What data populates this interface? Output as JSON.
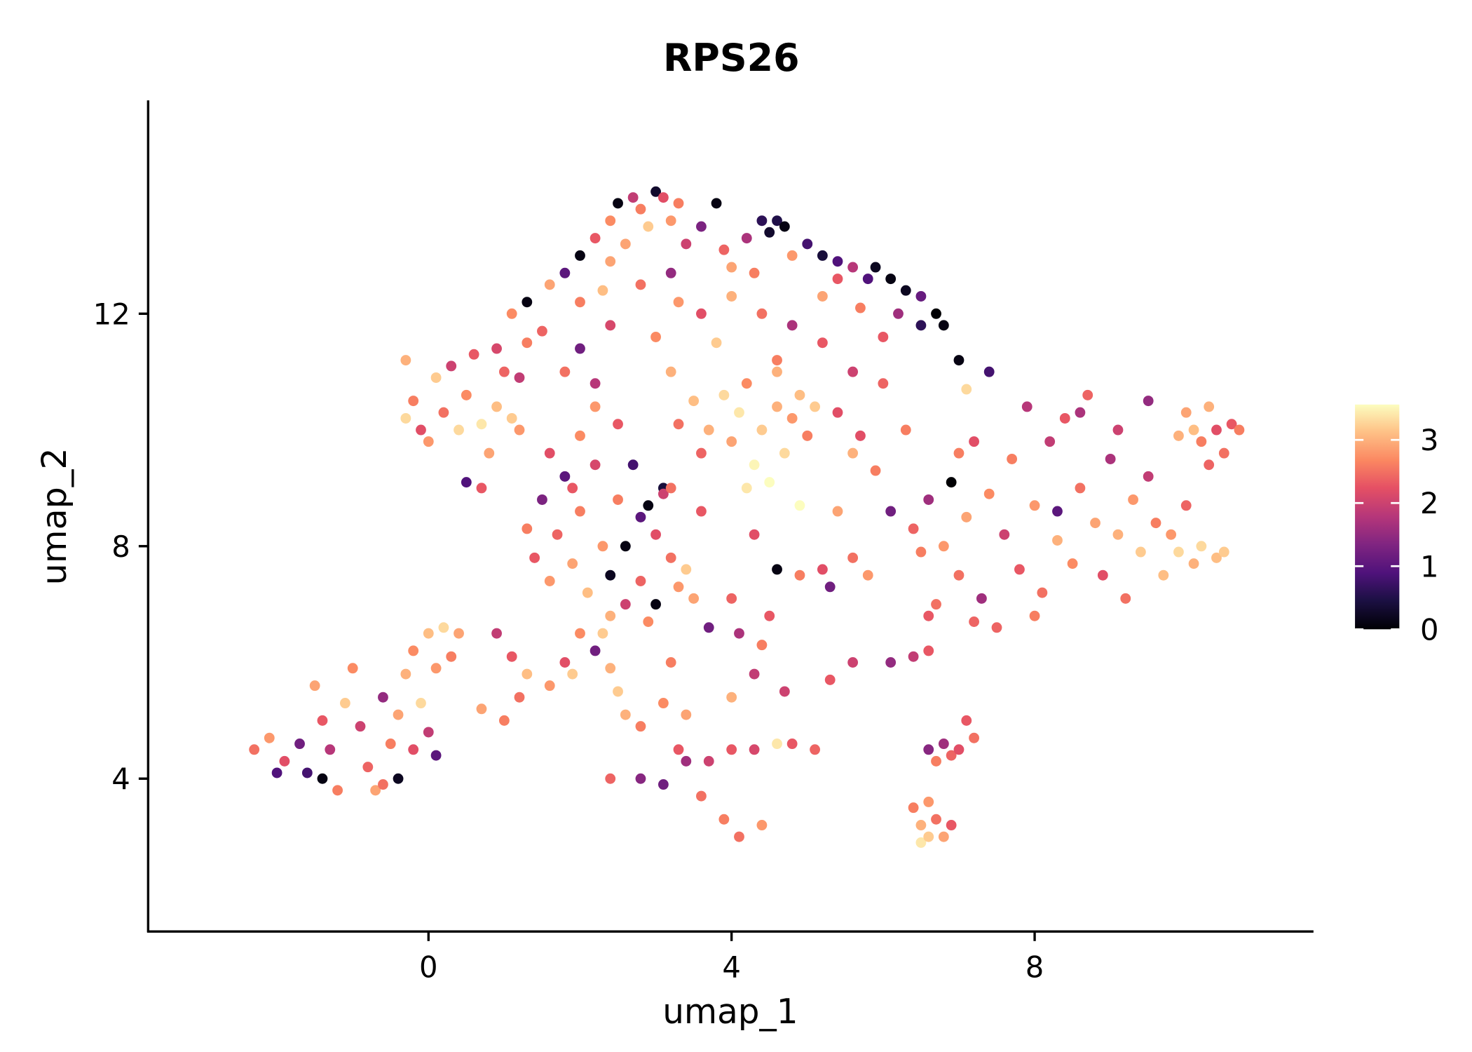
{
  "chart_data": {
    "type": "scatter",
    "title": "RPS26",
    "xlabel": "umap_1",
    "ylabel": "umap_2",
    "xlim": [
      -3.7,
      11.68
    ],
    "ylim": [
      1.37,
      15.67
    ],
    "xticks": [
      0,
      4,
      8
    ],
    "yticks": [
      4,
      8,
      12
    ],
    "xtick_labels": [
      "0",
      "4",
      "8"
    ],
    "ytick_labels": [
      "4",
      "8",
      "12"
    ],
    "grid": false,
    "colorbar": {
      "colormap": "magma",
      "range": [
        0,
        3.56
      ],
      "ticks": [
        0,
        1,
        2,
        3
      ],
      "tick_labels": [
        "0",
        "1",
        "2",
        "3"
      ],
      "placement": "right"
    },
    "point_fields": [
      "umap_1",
      "umap_2",
      "expression"
    ],
    "points": [
      [
        -2.3,
        4.5,
        2.5
      ],
      [
        -2.1,
        4.7,
        2.8
      ],
      [
        -1.9,
        4.3,
        2.2
      ],
      [
        -1.7,
        4.6,
        1.2
      ],
      [
        -1.6,
        4.1,
        0.8
      ],
      [
        -1.5,
        5.6,
        2.9
      ],
      [
        -1.4,
        5.0,
        2.3
      ],
      [
        -1.3,
        4.5,
        1.8
      ],
      [
        -1.2,
        3.8,
        2.6
      ],
      [
        -1.1,
        5.3,
        3.2
      ],
      [
        -1.0,
        5.9,
        2.7
      ],
      [
        -0.9,
        4.9,
        2.0
      ],
      [
        -0.8,
        4.2,
        2.4
      ],
      [
        -0.7,
        3.8,
        2.9
      ],
      [
        -0.6,
        5.4,
        1.5
      ],
      [
        -0.5,
        4.6,
        2.6
      ],
      [
        -0.4,
        5.1,
        2.9
      ],
      [
        -0.4,
        4.0,
        0.2
      ],
      [
        -0.3,
        5.8,
        3.0
      ],
      [
        -0.2,
        6.2,
        2.7
      ],
      [
        -0.2,
        4.5,
        2.2
      ],
      [
        -0.1,
        5.3,
        3.3
      ],
      [
        0.0,
        4.8,
        1.9
      ],
      [
        0.0,
        6.5,
        3.1
      ],
      [
        0.1,
        5.9,
        2.8
      ],
      [
        0.2,
        6.6,
        3.3
      ],
      [
        0.3,
        6.1,
        2.6
      ],
      [
        0.1,
        4.4,
        1.0
      ],
      [
        -1.4,
        4.0,
        0.1
      ],
      [
        -0.6,
        3.9,
        2.5
      ],
      [
        0.4,
        6.5,
        2.9
      ],
      [
        -2.0,
        4.1,
        0.9
      ],
      [
        -0.3,
        11.2,
        3.0
      ],
      [
        -0.2,
        10.5,
        2.6
      ],
      [
        -0.1,
        10.0,
        2.2
      ],
      [
        0.0,
        9.8,
        2.8
      ],
      [
        0.1,
        10.9,
        3.2
      ],
      [
        0.2,
        10.3,
        2.5
      ],
      [
        0.3,
        11.1,
        2.0
      ],
      [
        0.4,
        10.0,
        3.3
      ],
      [
        0.5,
        10.6,
        2.7
      ],
      [
        0.6,
        11.3,
        2.3
      ],
      [
        0.7,
        10.1,
        3.4
      ],
      [
        0.8,
        9.6,
        2.9
      ],
      [
        0.9,
        10.4,
        3.1
      ],
      [
        1.0,
        11.0,
        2.4
      ],
      [
        1.1,
        10.2,
        3.2
      ],
      [
        1.2,
        10.9,
        1.9
      ],
      [
        0.5,
        9.1,
        0.9
      ],
      [
        0.7,
        9.0,
        2.3
      ],
      [
        1.3,
        11.5,
        2.6
      ],
      [
        -0.3,
        10.2,
        3.3
      ],
      [
        0.9,
        11.4,
        2.1
      ],
      [
        1.2,
        10.0,
        2.8
      ],
      [
        1.1,
        12.0,
        2.7
      ],
      [
        1.3,
        12.2,
        0.1
      ],
      [
        1.5,
        11.7,
        2.4
      ],
      [
        1.6,
        12.5,
        2.9
      ],
      [
        1.8,
        12.7,
        1.0
      ],
      [
        2.0,
        12.2,
        2.6
      ],
      [
        2.0,
        13.0,
        0.1
      ],
      [
        2.2,
        13.3,
        2.3
      ],
      [
        2.3,
        12.4,
        3.1
      ],
      [
        2.4,
        13.6,
        2.7
      ],
      [
        2.5,
        13.9,
        0.1
      ],
      [
        2.6,
        13.2,
        2.9
      ],
      [
        2.7,
        14.0,
        1.9
      ],
      [
        2.8,
        13.8,
        2.6
      ],
      [
        2.9,
        13.5,
        3.2
      ],
      [
        3.0,
        14.1,
        0.3
      ],
      [
        3.1,
        14.0,
        2.2
      ],
      [
        3.2,
        13.6,
        2.8
      ],
      [
        3.3,
        13.9,
        2.6
      ],
      [
        3.4,
        13.2,
        2.0
      ],
      [
        3.6,
        13.5,
        1.3
      ],
      [
        3.8,
        13.9,
        0.1
      ],
      [
        3.9,
        13.1,
        2.4
      ],
      [
        4.0,
        12.8,
        2.9
      ],
      [
        4.2,
        13.3,
        1.7
      ],
      [
        4.4,
        13.6,
        0.6
      ],
      [
        4.5,
        13.4,
        0.3
      ],
      [
        4.6,
        13.6,
        0.5
      ],
      [
        4.7,
        13.5,
        0.1
      ],
      [
        4.8,
        13.0,
        2.8
      ],
      [
        5.0,
        13.2,
        0.8
      ],
      [
        5.2,
        13.0,
        0.4
      ],
      [
        5.4,
        12.6,
        2.3
      ],
      [
        5.6,
        12.8,
        1.8
      ],
      [
        5.8,
        12.6,
        0.9
      ],
      [
        5.9,
        12.8,
        0.2
      ],
      [
        6.1,
        12.6,
        0.1
      ],
      [
        6.3,
        12.4,
        0.2
      ],
      [
        6.5,
        12.3,
        1.1
      ],
      [
        6.7,
        12.0,
        0.0
      ],
      [
        6.8,
        11.8,
        0.1
      ],
      [
        6.5,
        11.8,
        0.6
      ],
      [
        7.0,
        11.2,
        0.1
      ],
      [
        7.1,
        10.7,
        3.3
      ],
      [
        6.2,
        12.0,
        1.6
      ],
      [
        6.0,
        11.6,
        2.3
      ],
      [
        5.7,
        12.1,
        2.6
      ],
      [
        5.2,
        12.3,
        2.9
      ],
      [
        2.8,
        12.5,
        2.5
      ],
      [
        3.3,
        12.2,
        2.8
      ],
      [
        3.6,
        12.0,
        2.2
      ],
      [
        4.0,
        12.3,
        3.0
      ],
      [
        4.4,
        12.0,
        2.5
      ],
      [
        4.8,
        11.8,
        1.7
      ],
      [
        5.2,
        11.5,
        2.3
      ],
      [
        2.4,
        11.8,
        2.1
      ],
      [
        2.0,
        11.4,
        1.2
      ],
      [
        3.0,
        11.6,
        2.7
      ],
      [
        3.8,
        11.5,
        3.2
      ],
      [
        4.6,
        11.2,
        2.6
      ],
      [
        5.6,
        11.0,
        2.0
      ],
      [
        1.8,
        11.0,
        2.5
      ],
      [
        2.2,
        10.8,
        1.8
      ],
      [
        3.2,
        11.0,
        3.0
      ],
      [
        6.0,
        10.8,
        2.4
      ],
      [
        5.4,
        12.9,
        0.9
      ],
      [
        4.3,
        12.7,
        2.6
      ],
      [
        3.2,
        12.7,
        1.5
      ],
      [
        2.4,
        12.9,
        2.9
      ],
      [
        3.5,
        10.5,
        3.1
      ],
      [
        3.7,
        10.0,
        3.0
      ],
      [
        3.9,
        10.6,
        3.3
      ],
      [
        4.0,
        9.8,
        2.9
      ],
      [
        4.1,
        10.3,
        3.4
      ],
      [
        4.2,
        10.8,
        2.7
      ],
      [
        4.3,
        9.4,
        3.5
      ],
      [
        4.4,
        10.0,
        3.2
      ],
      [
        4.5,
        9.1,
        3.6
      ],
      [
        4.6,
        10.4,
        3.0
      ],
      [
        4.7,
        9.6,
        3.3
      ],
      [
        4.8,
        10.2,
        2.8
      ],
      [
        4.9,
        10.6,
        3.1
      ],
      [
        5.0,
        9.9,
        2.6
      ],
      [
        5.1,
        10.4,
        3.2
      ],
      [
        4.9,
        8.7,
        3.6
      ],
      [
        4.2,
        9.0,
        3.4
      ],
      [
        3.3,
        10.1,
        2.5
      ],
      [
        5.4,
        10.3,
        2.2
      ],
      [
        5.6,
        9.6,
        3.0
      ],
      [
        4.6,
        11.0,
        3.0
      ],
      [
        3.6,
        9.6,
        2.4
      ],
      [
        1.3,
        8.3,
        2.6
      ],
      [
        1.4,
        7.8,
        2.3
      ],
      [
        1.5,
        8.8,
        1.3
      ],
      [
        1.6,
        9.6,
        2.2
      ],
      [
        1.6,
        7.4,
        2.8
      ],
      [
        1.7,
        8.2,
        2.4
      ],
      [
        1.8,
        9.2,
        1.0
      ],
      [
        1.9,
        7.7,
        2.9
      ],
      [
        2.0,
        8.6,
        2.6
      ],
      [
        2.0,
        9.9,
        2.7
      ],
      [
        2.1,
        7.2,
        3.1
      ],
      [
        2.2,
        9.4,
        2.1
      ],
      [
        2.3,
        8.0,
        2.8
      ],
      [
        2.3,
        6.5,
        3.2
      ],
      [
        2.4,
        7.5,
        0.2
      ],
      [
        2.5,
        8.8,
        2.6
      ],
      [
        2.5,
        10.1,
        2.3
      ],
      [
        2.6,
        8.0,
        0.1
      ],
      [
        2.7,
        9.4,
        0.8
      ],
      [
        2.8,
        7.4,
        2.4
      ],
      [
        2.8,
        8.5,
        1.0
      ],
      [
        2.9,
        6.7,
        2.7
      ],
      [
        3.0,
        8.2,
        2.2
      ],
      [
        3.0,
        7.0,
        0.1
      ],
      [
        3.1,
        9.0,
        0.4
      ],
      [
        3.2,
        7.8,
        2.5
      ],
      [
        3.3,
        7.3,
        2.8
      ],
      [
        3.4,
        7.6,
        3.2
      ],
      [
        3.5,
        7.1,
        2.9
      ],
      [
        2.9,
        8.7,
        0.1
      ],
      [
        1.9,
        9.0,
        2.3
      ],
      [
        2.6,
        7.0,
        2.0
      ],
      [
        2.2,
        10.4,
        2.8
      ],
      [
        2.4,
        6.8,
        3.0
      ],
      [
        3.1,
        8.9,
        2.0
      ],
      [
        0.9,
        6.5,
        1.9
      ],
      [
        1.1,
        6.1,
        2.3
      ],
      [
        1.0,
        5.0,
        2.6
      ],
      [
        0.7,
        5.2,
        2.9
      ],
      [
        1.3,
        5.8,
        3.1
      ],
      [
        1.2,
        5.4,
        2.5
      ],
      [
        1.6,
        5.6,
        2.8
      ],
      [
        1.8,
        6.0,
        2.2
      ],
      [
        1.9,
        5.8,
        3.2
      ],
      [
        2.0,
        6.5,
        2.7
      ],
      [
        2.2,
        6.2,
        1.2
      ],
      [
        2.4,
        5.9,
        3.0
      ],
      [
        2.5,
        5.5,
        3.2
      ],
      [
        2.6,
        5.1,
        3.0
      ],
      [
        2.8,
        4.9,
        2.6
      ],
      [
        3.1,
        5.3,
        2.7
      ],
      [
        3.4,
        5.1,
        2.9
      ],
      [
        3.3,
        4.5,
        2.3
      ],
      [
        2.4,
        4.0,
        2.4
      ],
      [
        2.8,
        4.0,
        1.4
      ],
      [
        3.1,
        3.9,
        1.2
      ],
      [
        3.4,
        4.3,
        1.6
      ],
      [
        3.7,
        4.3,
        2.0
      ],
      [
        3.6,
        3.7,
        2.5
      ],
      [
        3.9,
        3.3,
        2.6
      ],
      [
        4.1,
        3.0,
        2.5
      ],
      [
        4.4,
        3.2,
        2.8
      ],
      [
        4.0,
        4.5,
        2.3
      ],
      [
        4.3,
        4.5,
        2.1
      ],
      [
        4.6,
        4.6,
        3.4
      ],
      [
        4.8,
        4.6,
        2.3
      ],
      [
        4.0,
        5.4,
        3.0
      ],
      [
        4.3,
        5.8,
        1.9
      ],
      [
        4.4,
        6.3,
        2.6
      ],
      [
        4.7,
        5.5,
        2.0
      ],
      [
        3.7,
        6.6,
        1.2
      ],
      [
        4.1,
        6.5,
        1.7
      ],
      [
        5.1,
        4.5,
        2.4
      ],
      [
        3.2,
        6.0,
        2.6
      ],
      [
        4.5,
        6.8,
        2.3
      ],
      [
        3.6,
        8.6,
        2.3
      ],
      [
        3.2,
        9.0,
        2.5
      ],
      [
        4.3,
        8.2,
        2.2
      ],
      [
        4.6,
        7.6,
        0.1
      ],
      [
        4.9,
        7.5,
        2.6
      ],
      [
        5.2,
        7.6,
        2.2
      ],
      [
        5.3,
        7.3,
        1.2
      ],
      [
        5.6,
        7.8,
        2.5
      ],
      [
        5.8,
        7.5,
        2.8
      ],
      [
        5.9,
        9.3,
        2.6
      ],
      [
        5.4,
        8.6,
        2.9
      ],
      [
        4.0,
        7.1,
        2.4
      ],
      [
        5.6,
        6.0,
        2.0
      ],
      [
        6.1,
        6.0,
        1.5
      ],
      [
        6.4,
        6.1,
        1.9
      ],
      [
        6.6,
        6.2,
        2.3
      ],
      [
        6.1,
        8.6,
        1.2
      ],
      [
        5.3,
        5.7,
        2.3
      ],
      [
        5.7,
        9.9,
        2.2
      ],
      [
        6.3,
        10.0,
        2.6
      ],
      [
        6.4,
        8.3,
        2.4
      ],
      [
        6.5,
        7.9,
        2.6
      ],
      [
        6.6,
        8.8,
        1.6
      ],
      [
        6.7,
        7.0,
        2.5
      ],
      [
        6.8,
        8.0,
        2.8
      ],
      [
        6.9,
        9.1,
        0.0
      ],
      [
        7.0,
        7.5,
        2.5
      ],
      [
        7.1,
        8.5,
        2.9
      ],
      [
        7.2,
        9.8,
        2.2
      ],
      [
        7.3,
        7.1,
        1.6
      ],
      [
        7.4,
        8.9,
        2.7
      ],
      [
        7.5,
        6.6,
        2.4
      ],
      [
        7.6,
        8.2,
        2.0
      ],
      [
        7.7,
        9.5,
        2.6
      ],
      [
        7.8,
        7.6,
        2.3
      ],
      [
        7.9,
        10.4,
        1.8
      ],
      [
        8.0,
        8.7,
        2.8
      ],
      [
        8.1,
        7.2,
        2.5
      ],
      [
        8.2,
        9.8,
        1.9
      ],
      [
        8.3,
        8.1,
        3.0
      ],
      [
        8.4,
        10.2,
        2.3
      ],
      [
        8.5,
        7.7,
        2.7
      ],
      [
        8.6,
        9.0,
        2.5
      ],
      [
        8.7,
        10.6,
        2.4
      ],
      [
        8.8,
        8.4,
        2.9
      ],
      [
        8.9,
        7.5,
        2.2
      ],
      [
        9.0,
        9.5,
        1.7
      ],
      [
        9.1,
        8.2,
        3.0
      ],
      [
        9.2,
        7.1,
        2.5
      ],
      [
        9.3,
        8.8,
        2.8
      ],
      [
        9.4,
        7.9,
        3.2
      ],
      [
        9.5,
        9.2,
        1.9
      ],
      [
        9.6,
        8.4,
        2.6
      ],
      [
        9.7,
        7.5,
        3.1
      ],
      [
        9.8,
        8.2,
        2.8
      ],
      [
        9.9,
        7.9,
        3.3
      ],
      [
        10.0,
        8.7,
        2.4
      ],
      [
        10.1,
        7.7,
        3.0
      ],
      [
        10.2,
        8.0,
        3.3
      ],
      [
        10.4,
        7.8,
        3.1
      ],
      [
        10.5,
        7.9,
        3.2
      ],
      [
        8.6,
        10.3,
        1.7
      ],
      [
        8.0,
        6.8,
        2.6
      ],
      [
        7.2,
        6.7,
        2.4
      ],
      [
        6.6,
        6.8,
        2.3
      ],
      [
        9.1,
        10.0,
        2.0
      ],
      [
        9.5,
        10.5,
        1.5
      ],
      [
        8.3,
        8.6,
        1.0
      ],
      [
        7.4,
        11.0,
        0.8
      ],
      [
        7.0,
        9.6,
        2.6
      ],
      [
        10.0,
        10.3,
        2.9
      ],
      [
        10.1,
        10.0,
        3.1
      ],
      [
        10.2,
        9.8,
        2.6
      ],
      [
        10.3,
        10.4,
        3.0
      ],
      [
        10.4,
        10.0,
        2.2
      ],
      [
        10.5,
        9.6,
        2.5
      ],
      [
        10.6,
        10.1,
        2.3
      ],
      [
        10.7,
        10.0,
        2.6
      ],
      [
        10.3,
        9.4,
        2.4
      ],
      [
        9.9,
        9.9,
        3.0
      ],
      [
        6.4,
        3.5,
        2.6
      ],
      [
        6.5,
        3.2,
        3.0
      ],
      [
        6.5,
        2.9,
        3.4
      ],
      [
        6.6,
        3.6,
        2.8
      ],
      [
        6.6,
        3.0,
        3.2
      ],
      [
        6.7,
        3.3,
        2.5
      ],
      [
        6.8,
        3.0,
        2.9
      ],
      [
        6.9,
        3.2,
        2.3
      ],
      [
        6.6,
        4.5,
        1.4
      ],
      [
        6.7,
        4.3,
        2.6
      ],
      [
        6.8,
        4.6,
        1.6
      ],
      [
        6.9,
        4.4,
        2.4
      ],
      [
        7.0,
        4.5,
        2.2
      ],
      [
        7.2,
        4.7,
        2.5
      ],
      [
        7.1,
        5.0,
        2.3
      ]
    ]
  }
}
